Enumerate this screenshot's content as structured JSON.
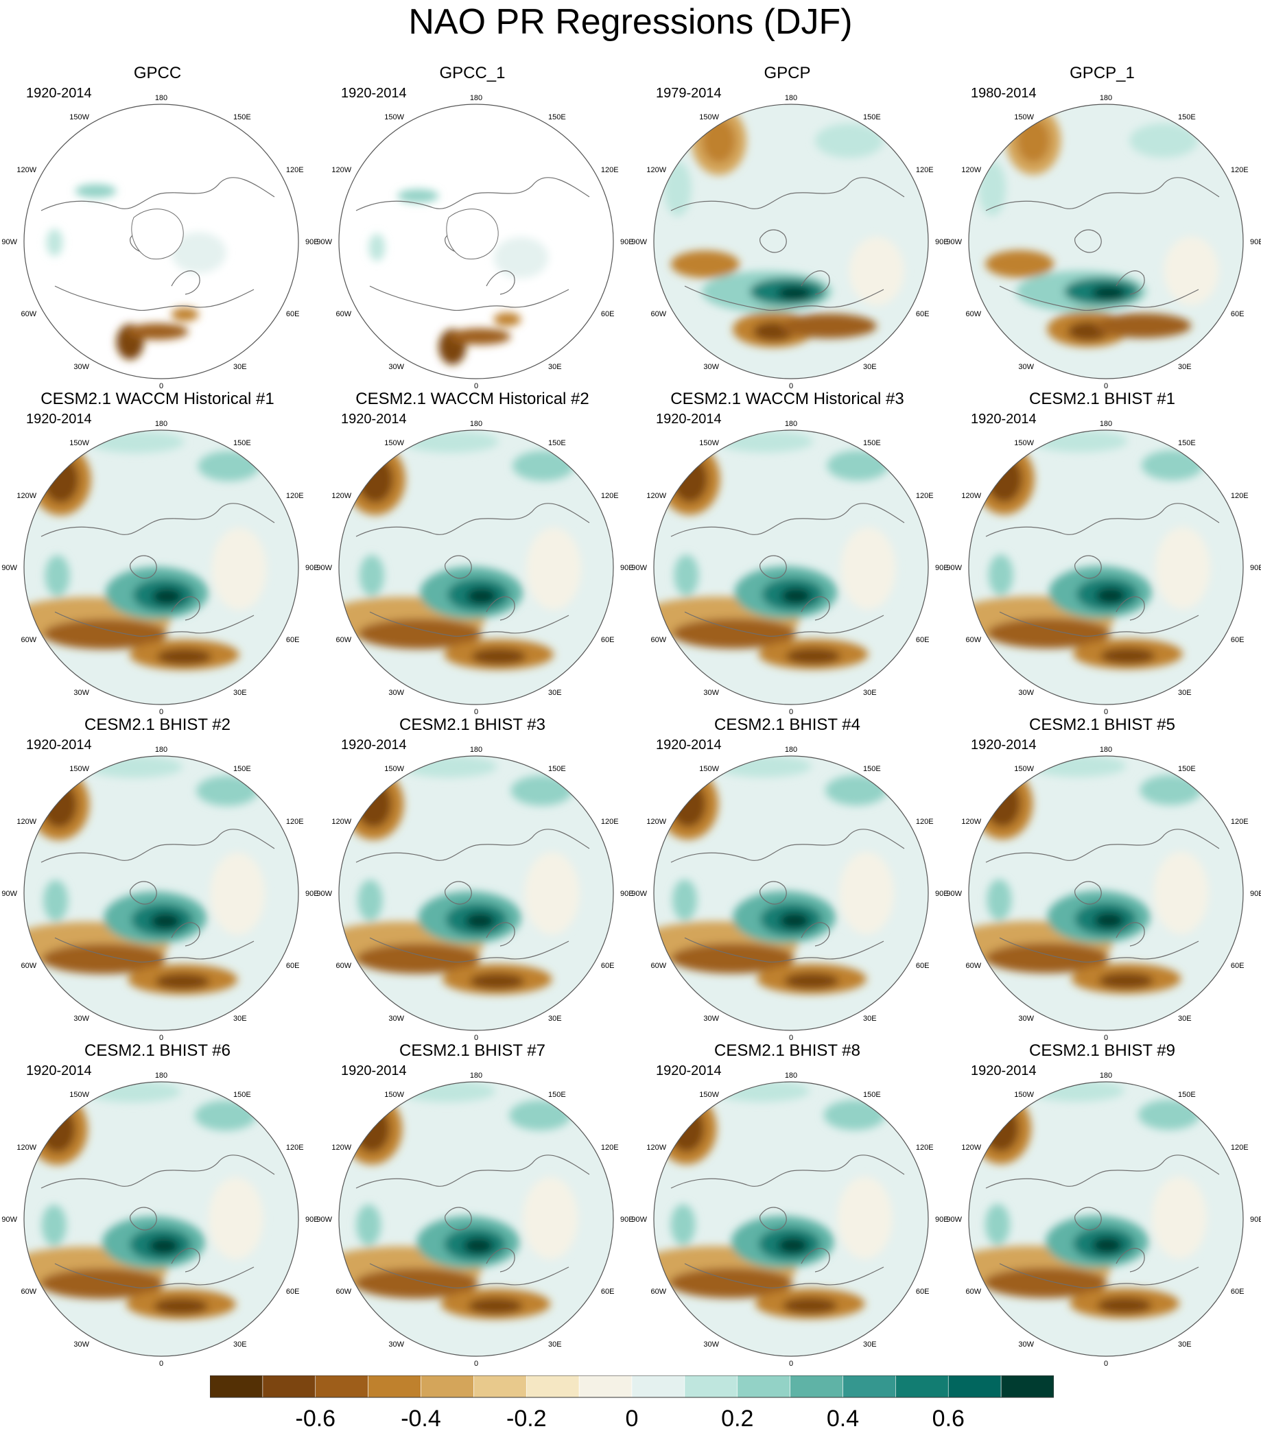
{
  "title": "NAO PR Regressions (DJF)",
  "lon_labels": [
    "180",
    "150E",
    "120E",
    "90E",
    "60E",
    "30E",
    "0",
    "30W",
    "60W",
    "90W",
    "120W",
    "150W"
  ],
  "panels": [
    {
      "title": "GPCC",
      "period": "1920-2014",
      "kind": "obs_land"
    },
    {
      "title": "GPCC_1",
      "period": "1920-2014",
      "kind": "obs_land"
    },
    {
      "title": "GPCP",
      "period": "1979-2014",
      "kind": "obs_global"
    },
    {
      "title": "GPCP_1",
      "period": "1980-2014",
      "kind": "obs_global"
    },
    {
      "title": "CESM2.1 WACCM Historical #1",
      "period": "1920-2014",
      "kind": "model"
    },
    {
      "title": "CESM2.1 WACCM Historical #2",
      "period": "1920-2014",
      "kind": "model"
    },
    {
      "title": "CESM2.1 WACCM Historical #3",
      "period": "1920-2014",
      "kind": "model"
    },
    {
      "title": "CESM2.1 BHIST #1",
      "period": "1920-2014",
      "kind": "model"
    },
    {
      "title": "CESM2.1 BHIST #2",
      "period": "1920-2014",
      "kind": "model"
    },
    {
      "title": "CESM2.1 BHIST #3",
      "period": "1920-2014",
      "kind": "model"
    },
    {
      "title": "CESM2.1 BHIST #4",
      "period": "1920-2014",
      "kind": "model"
    },
    {
      "title": "CESM2.1 BHIST #5",
      "period": "1920-2014",
      "kind": "model"
    },
    {
      "title": "CESM2.1 BHIST #6",
      "period": "1920-2014",
      "kind": "model"
    },
    {
      "title": "CESM2.1 BHIST #7",
      "period": "1920-2014",
      "kind": "model"
    },
    {
      "title": "CESM2.1 BHIST #8",
      "period": "1920-2014",
      "kind": "model"
    },
    {
      "title": "CESM2.1 BHIST #9",
      "period": "1920-2014",
      "kind": "model"
    }
  ],
  "colorbar": {
    "colors": [
      "#543005",
      "#7c4510",
      "#9e5e1a",
      "#bf812d",
      "#d4a55a",
      "#e8c98c",
      "#f5e7c3",
      "#f5f2e6",
      "#e4f1ef",
      "#bfe6de",
      "#93d2c6",
      "#5fb3a6",
      "#35978f",
      "#127d72",
      "#01665e",
      "#003c30"
    ],
    "tick_labels": [
      "-0.6",
      "-0.4",
      "-0.2",
      "0",
      "0.2",
      "0.4",
      "0.6"
    ]
  }
}
